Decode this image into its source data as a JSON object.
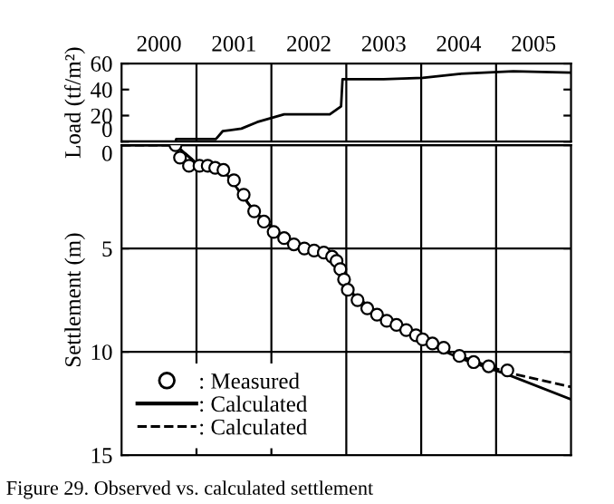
{
  "chart_data": [
    {
      "type": "line",
      "ylabel": "Load (tf/m²)",
      "xlim": [
        2000,
        2006
      ],
      "xticks": [
        {
          "value": 2000.5,
          "label": "2000"
        },
        {
          "value": 2001,
          "label": null
        },
        {
          "value": 2001.5,
          "label": "2001"
        },
        {
          "value": 2002,
          "label": null
        },
        {
          "value": 2002.5,
          "label": "2002"
        },
        {
          "value": 2003,
          "label": null
        },
        {
          "value": 2003.5,
          "label": "2003"
        },
        {
          "value": 2004,
          "label": null
        },
        {
          "value": 2004.5,
          "label": "2004"
        },
        {
          "value": 2005,
          "label": null
        },
        {
          "value": 2005.5,
          "label": "2005"
        }
      ],
      "ylim": [
        0,
        60
      ],
      "yticks": [
        0,
        20,
        40,
        60
      ],
      "grid": "x",
      "line_style": "solid",
      "marker": "none",
      "series": [
        {
          "color": "#000000",
          "x": [
            2000,
            2000.72,
            2000.73,
            2001.26,
            2001.35,
            2001.6,
            2001.81,
            2002.17,
            2002.78,
            2002.93,
            2002.95,
            2003.5,
            2004.02,
            2004.5,
            2005.23,
            2006
          ],
          "values": [
            0,
            0,
            2,
            2,
            8,
            10,
            15,
            21,
            21,
            27,
            48,
            48,
            49,
            52,
            54,
            53
          ]
        }
      ]
    },
    {
      "type": "line",
      "xlabel": null,
      "ylabel": "Settlement (m)",
      "xlim": [
        2000,
        2006
      ],
      "xticks": [
        {
          "value": 2001,
          "label": null
        },
        {
          "value": 2002,
          "label": null
        },
        {
          "value": 2003,
          "label": null
        },
        {
          "value": 2004,
          "label": null
        },
        {
          "value": 2005,
          "label": null
        }
      ],
      "ylim": [
        15,
        0
      ],
      "yticks": [
        0,
        5,
        10,
        15
      ],
      "grid": true,
      "tick_labels": "y",
      "legend": "bottom left",
      "annotations": [
        "Figure 29. Observed vs. calculated settlement"
      ],
      "series": [
        {
          "name": ": Measured",
          "type": "scatter",
          "marker": "circle",
          "color": "#000000",
          "x": [
            2000.72,
            2000.78,
            2000.9,
            2001.04,
            2001.15,
            2001.25,
            2001.36,
            2001.5,
            2001.63,
            2001.77,
            2001.9,
            2002.03,
            2002.17,
            2002.3,
            2002.44,
            2002.57,
            2002.7,
            2002.81,
            2002.87,
            2002.92,
            2002.97,
            2003.02,
            2003.15,
            2003.28,
            2003.41,
            2003.54,
            2003.67,
            2003.8,
            2003.93,
            2004.02,
            2004.15,
            2004.3,
            2004.51,
            2004.7,
            2004.9,
            2005.15
          ],
          "values": [
            0,
            0.6,
            1.0,
            1.0,
            1.0,
            1.1,
            1.2,
            1.7,
            2.4,
            3.2,
            3.7,
            4.2,
            4.5,
            4.8,
            5.0,
            5.1,
            5.2,
            5.4,
            5.6,
            6.0,
            6.5,
            7.0,
            7.5,
            7.9,
            8.2,
            8.5,
            8.7,
            8.95,
            9.2,
            9.4,
            9.6,
            9.8,
            10.2,
            10.5,
            10.7,
            10.9
          ]
        },
        {
          "name": ": Calculated",
          "color": "#000000",
          "line_style": "solid",
          "x": [
            2000,
            2000.72,
            2001.04,
            2001.36,
            2001.77,
            2002.17,
            2002.57,
            2002.81,
            2002.92,
            2003.02,
            2003.54,
            2004.02,
            2004.51,
            2005.15,
            2006
          ],
          "values": [
            0,
            0,
            1.0,
            1.2,
            3.2,
            4.5,
            5.1,
            5.4,
            6.0,
            7.0,
            8.5,
            9.5,
            10.3,
            11.1,
            12.3
          ]
        },
        {
          "name": ": Calculated",
          "color": "#000000",
          "line_style": "dashed",
          "x": [
            2000,
            2000.72,
            2001.04,
            2001.36,
            2001.77,
            2002.17,
            2002.57,
            2002.81,
            2002.92,
            2003.02,
            2003.54,
            2004.02,
            2004.51,
            2005.15,
            2006
          ],
          "values": [
            0,
            0,
            1.0,
            1.2,
            3.2,
            4.5,
            5.1,
            5.4,
            6.0,
            7.0,
            8.5,
            9.4,
            10.2,
            11.0,
            11.7
          ]
        }
      ]
    }
  ]
}
